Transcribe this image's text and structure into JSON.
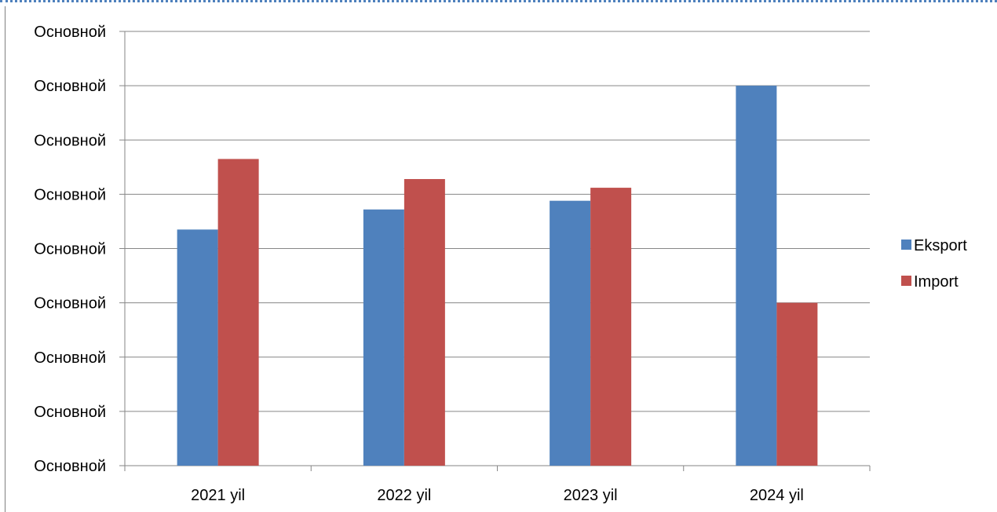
{
  "chart_data": {
    "type": "bar",
    "categories": [
      "2021 yil",
      "2022 yil",
      "2023 yil",
      "2024 yil"
    ],
    "series": [
      {
        "name": "Eksport",
        "color": "#4f81bd",
        "values": [
          4.35,
          4.72,
          4.88,
          7.0
        ]
      },
      {
        "name": "Import",
        "color": "#c0504d",
        "values": [
          5.65,
          5.28,
          5.12,
          3.0
        ]
      }
    ],
    "ylim": [
      0,
      8
    ],
    "y_tick_labels": [
      "Основной",
      "Основной",
      "Основной",
      "Основной",
      "Основной",
      "Основной",
      "Основной",
      "Основной",
      "Основной"
    ],
    "grid": true,
    "legend_position": "right",
    "title": "",
    "xlabel": "",
    "ylabel": ""
  }
}
